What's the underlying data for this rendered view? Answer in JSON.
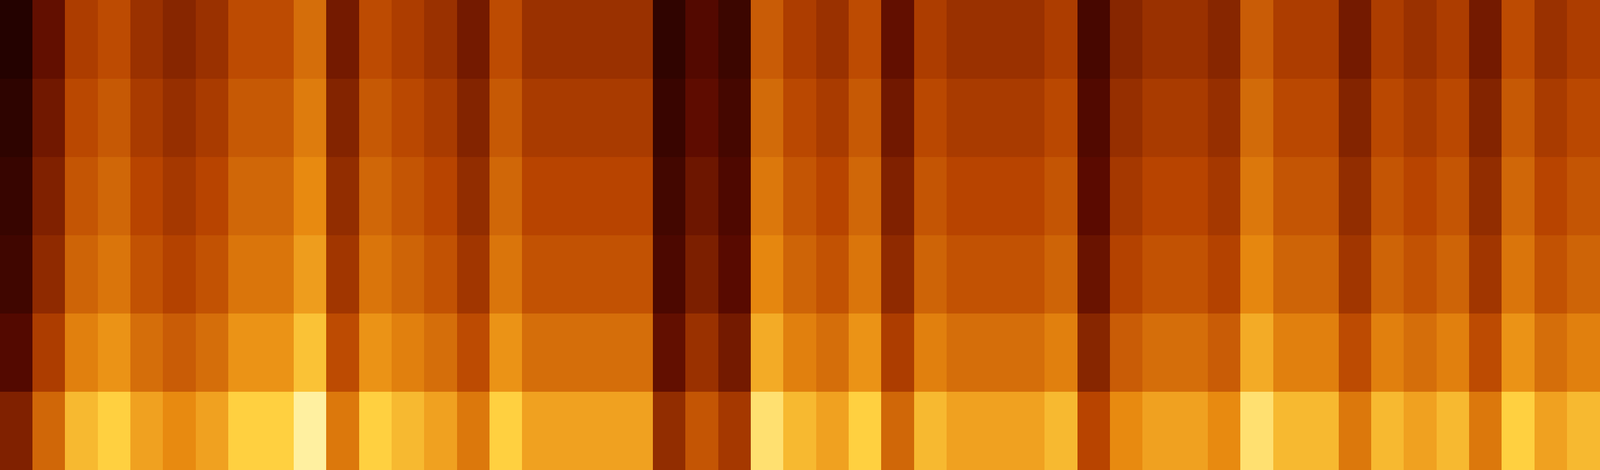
{
  "chart_data": {
    "type": "heatmap",
    "tick_labels": false,
    "grid": false,
    "xlim": [
      0,
      49
    ],
    "ylim": [
      0,
      6
    ],
    "color_range": [
      0,
      100
    ],
    "cells": [
      [
        40,
        65,
        85,
        90,
        80,
        75,
        80,
        90,
        90,
        100,
        70,
        90,
        85,
        80,
        70,
        90,
        80,
        80,
        80,
        80,
        45,
        60,
        50,
        95,
        85,
        80,
        90,
        65,
        85,
        80,
        80,
        80,
        85,
        55,
        75,
        80,
        80,
        75,
        95,
        85,
        85,
        70,
        85,
        80,
        85,
        70,
        90,
        80,
        85
      ],
      [
        27,
        52,
        72,
        77,
        67,
        62,
        67,
        77,
        77,
        87,
        57,
        77,
        72,
        67,
        57,
        77,
        67,
        67,
        67,
        67,
        32,
        47,
        37,
        82,
        72,
        67,
        77,
        52,
        72,
        67,
        67,
        67,
        72,
        42,
        62,
        67,
        67,
        62,
        82,
        72,
        72,
        57,
        72,
        67,
        72,
        57,
        77,
        67,
        72
      ],
      [
        19,
        44,
        64,
        69,
        59,
        54,
        59,
        69,
        69,
        79,
        49,
        69,
        64,
        59,
        49,
        69,
        59,
        59,
        59,
        59,
        24,
        39,
        29,
        74,
        64,
        59,
        69,
        44,
        64,
        59,
        59,
        59,
        64,
        34,
        54,
        59,
        59,
        54,
        74,
        64,
        64,
        49,
        64,
        59,
        64,
        49,
        69,
        59,
        64
      ],
      [
        15,
        40,
        60,
        65,
        55,
        50,
        55,
        65,
        65,
        75,
        45,
        65,
        60,
        55,
        45,
        65,
        55,
        55,
        55,
        55,
        20,
        35,
        25,
        70,
        60,
        55,
        65,
        40,
        60,
        55,
        55,
        55,
        60,
        30,
        50,
        55,
        55,
        50,
        70,
        60,
        60,
        45,
        60,
        55,
        60,
        45,
        65,
        55,
        60
      ],
      [
        11,
        36,
        56,
        61,
        51,
        46,
        51,
        61,
        61,
        71,
        41,
        61,
        56,
        51,
        41,
        61,
        51,
        51,
        51,
        51,
        16,
        31,
        21,
        66,
        56,
        51,
        61,
        36,
        56,
        51,
        51,
        51,
        56,
        26,
        46,
        51,
        51,
        46,
        66,
        56,
        56,
        41,
        56,
        51,
        56,
        41,
        61,
        51,
        56
      ],
      [
        7,
        32,
        52,
        57,
        47,
        42,
        47,
        57,
        57,
        67,
        37,
        57,
        52,
        47,
        37,
        57,
        47,
        47,
        47,
        47,
        12,
        27,
        17,
        62,
        52,
        47,
        57,
        32,
        52,
        47,
        47,
        47,
        52,
        22,
        42,
        47,
        47,
        42,
        62,
        52,
        52,
        37,
        52,
        47,
        52,
        37,
        57,
        47,
        52
      ]
    ]
  }
}
